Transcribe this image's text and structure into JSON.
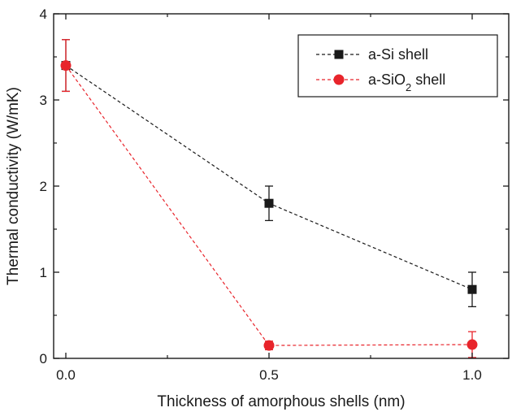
{
  "chart_data": {
    "type": "line",
    "title": "",
    "xlabel": "Thickness of amorphous shells (nm)",
    "ylabel": "Thermal conductivity (W/mK)",
    "xlim": [
      -0.03,
      1.09
    ],
    "ylim": [
      0,
      4
    ],
    "xticks": [
      0.0,
      0.5,
      1.0
    ],
    "xtick_labels": [
      "0.0",
      "0.5",
      "1.0"
    ],
    "yticks": [
      0,
      1,
      2,
      3,
      4
    ],
    "ytick_labels": [
      "0",
      "1",
      "2",
      "3",
      "4"
    ],
    "grid": false,
    "legend_position": "top-right",
    "series": [
      {
        "name": "a-Si shell",
        "color": "#1a1a1a",
        "marker": "square",
        "line_style": "dashed",
        "x": [
          0.0,
          0.5,
          1.0
        ],
        "y": [
          3.4,
          1.8,
          0.8
        ],
        "error": [
          0.3,
          0.2,
          0.2
        ]
      },
      {
        "name": "a-SiO2 shell",
        "color": "#e8242b",
        "marker": "circle",
        "line_style": "dashed",
        "x": [
          0.0,
          0.5,
          1.0
        ],
        "y": [
          3.4,
          0.15,
          0.16
        ],
        "error": [
          0.3,
          0.05,
          0.15
        ]
      }
    ]
  }
}
